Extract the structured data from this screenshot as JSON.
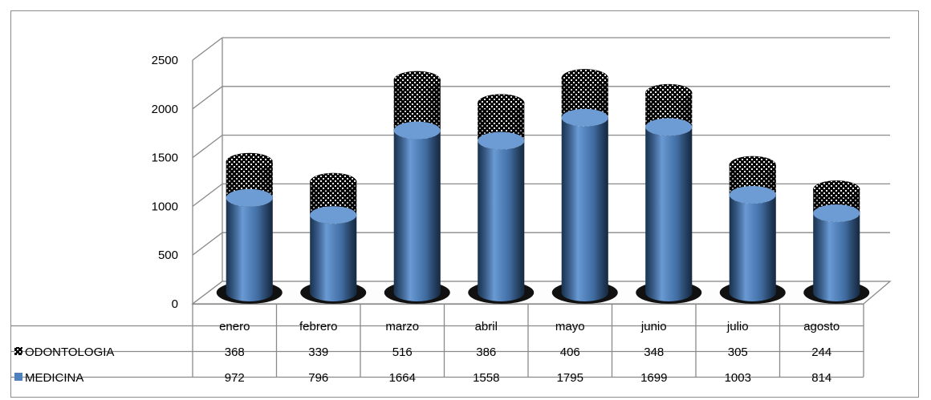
{
  "chart_data": {
    "type": "bar",
    "stacked": true,
    "style": "3d-cylinder",
    "categories": [
      "enero",
      "febrero",
      "marzo",
      "abril",
      "mayo",
      "junio",
      "julio",
      "agosto"
    ],
    "series": [
      {
        "name": "ODONTOLOGIA",
        "values": [
          368,
          339,
          516,
          386,
          406,
          348,
          305,
          244
        ],
        "color": "#0a0a0a",
        "pattern": "checker"
      },
      {
        "name": "MEDICINA",
        "values": [
          972,
          796,
          1664,
          1558,
          1795,
          1699,
          1003,
          814
        ],
        "color": "#4f81bd"
      }
    ],
    "ylim": [
      0,
      2500
    ],
    "yticks": [
      0,
      500,
      1000,
      1500,
      2000,
      2500
    ],
    "grid": true,
    "legend": "data-table"
  }
}
